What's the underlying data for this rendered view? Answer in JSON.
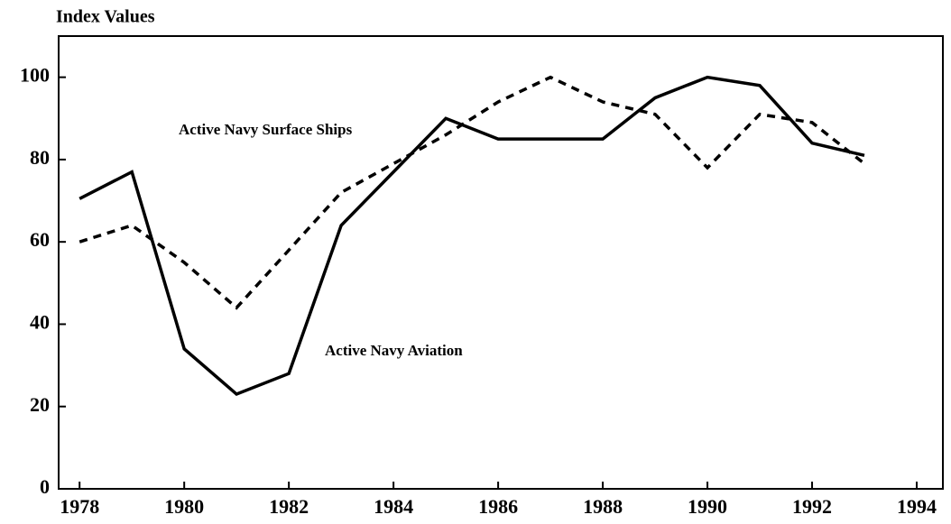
{
  "chart_data": {
    "type": "line",
    "title": "Index Values",
    "x": [
      1978,
      1979,
      1980,
      1981,
      1982,
      1983,
      1984,
      1985,
      1986,
      1987,
      1988,
      1989,
      1990,
      1991,
      1992,
      1993
    ],
    "series": [
      {
        "name": "Active Navy Aviation",
        "color": "#000000",
        "dash": "solid",
        "values": [
          70.5,
          77,
          34,
          23,
          28,
          64,
          77,
          90,
          85,
          85,
          85,
          95,
          100,
          98,
          84,
          81
        ]
      },
      {
        "name": "Active Navy Surface Ships",
        "color": "#000000",
        "dash": "dashed",
        "values": [
          60,
          64,
          55,
          44,
          58,
          72,
          79,
          86,
          94,
          100,
          94,
          91,
          78,
          91,
          89,
          79
        ]
      }
    ],
    "xlim": [
      1977.6,
      1994.5
    ],
    "xticks": [
      1978,
      1980,
      1982,
      1984,
      1986,
      1988,
      1990,
      1992,
      1994
    ],
    "ylim": [
      0,
      110
    ],
    "yticks": [
      0,
      20,
      40,
      60,
      80,
      100
    ],
    "grid": false
  }
}
